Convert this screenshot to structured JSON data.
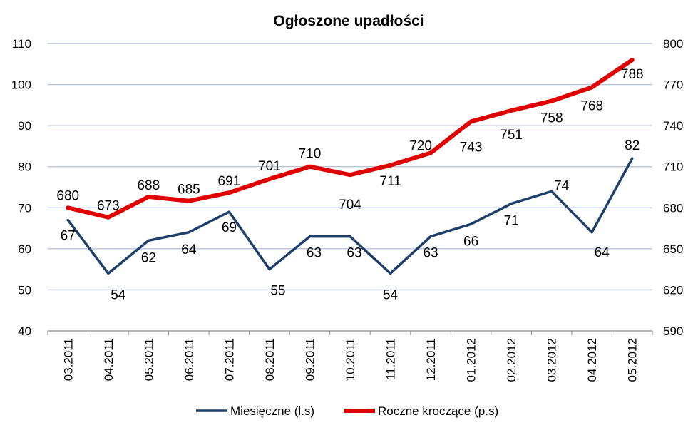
{
  "chart_data": {
    "type": "line",
    "title": "Ogłoszone upadłości",
    "categories": [
      "03.2011",
      "04.2011",
      "05.2011",
      "06.2011",
      "07.2011",
      "08.2011",
      "09.2011",
      "10.2011",
      "11.2011",
      "12.2011",
      "01.2012",
      "02.2012",
      "03.2012",
      "04.2012",
      "05.2012"
    ],
    "y_left": {
      "min": 40,
      "max": 110,
      "step": 10
    },
    "y_right": {
      "min": 590,
      "max": 800,
      "step": 30
    },
    "grid": true,
    "legend_position": "bottom",
    "series": [
      {
        "name": "Miesięczne (l.s)",
        "axis": "left",
        "color": "#1F3F6B",
        "values": [
          67,
          54,
          62,
          64,
          69,
          55,
          63,
          63,
          54,
          63,
          66,
          71,
          74,
          64,
          82
        ]
      },
      {
        "name": "Roczne kroczące (p.s)",
        "axis": "right",
        "color": "#E00000",
        "values": [
          680,
          673,
          688,
          685,
          691,
          701,
          710,
          704,
          711,
          720,
          743,
          751,
          758,
          768,
          788
        ]
      }
    ]
  }
}
